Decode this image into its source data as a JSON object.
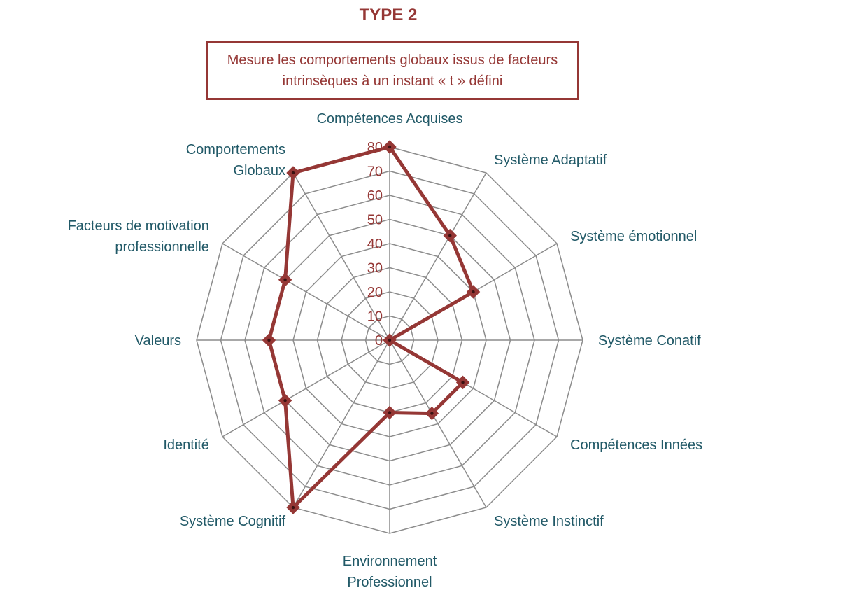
{
  "colors": {
    "accent": "#953735",
    "label": "#215967",
    "grid": "#8c8c8c",
    "marker_dot": "#3a1212"
  },
  "header": {
    "title": "TYPE 2",
    "subtitle": "Mesure les comportements globaux issus de facteurs intrinsèques à un instant « t » défini"
  },
  "chart_data": {
    "type": "radar",
    "title": "TYPE 2",
    "rlim": [
      0,
      80
    ],
    "ticks": [
      "0",
      "10",
      "20",
      "30",
      "40",
      "50",
      "60",
      "70",
      "80"
    ],
    "grid": true,
    "axes": [
      [
        "Compétences Acquises"
      ],
      [
        "Système Adaptatif"
      ],
      [
        "Système émotionnel"
      ],
      [
        "Système Conatif"
      ],
      [
        "Compétences Innées"
      ],
      [
        "Système Instinctif"
      ],
      [
        "Environnement",
        "Professionnel"
      ],
      [
        "Système Cognitif"
      ],
      [
        "Identité"
      ],
      [
        "Valeurs"
      ],
      [
        "Facteurs de motivation",
        "professionnelle"
      ],
      [
        "Comportements",
        "Globaux"
      ]
    ],
    "series": [
      {
        "values": [
          80,
          50,
          40,
          0,
          35,
          35,
          30,
          80,
          50,
          50,
          50,
          80
        ]
      }
    ]
  }
}
